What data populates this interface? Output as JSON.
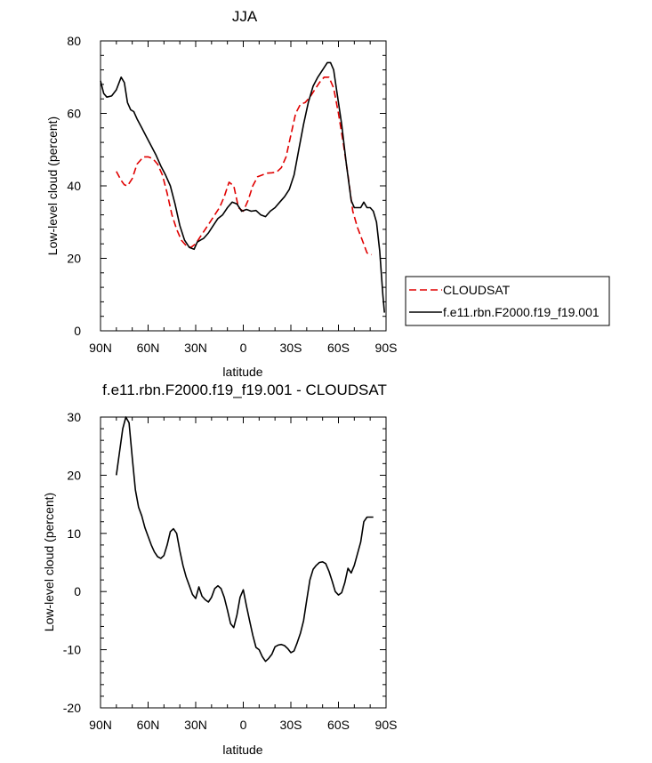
{
  "chart_data": [
    {
      "type": "line",
      "title": "JJA",
      "xlabel": "latitude",
      "ylabel": "Low-level cloud (percent)",
      "xlim": [
        -90,
        90
      ],
      "ylim": [
        0,
        80
      ],
      "x_ticks": [
        -90,
        -60,
        -30,
        0,
        30,
        60,
        90
      ],
      "x_tick_labels": [
        "90N",
        "60N",
        "30N",
        "0",
        "30S",
        "60S",
        "90S"
      ],
      "y_ticks": [
        0,
        20,
        40,
        60,
        80
      ],
      "y_tick_labels": [
        "0",
        "20",
        "40",
        "60",
        "80"
      ],
      "legend": "right",
      "series": [
        {
          "name": "CLOUDSAT",
          "color": "#e00000",
          "dash": "dashed",
          "x": [
            -80,
            -77,
            -75,
            -73,
            -70,
            -67,
            -63,
            -60,
            -57,
            -54,
            -51,
            -48,
            -45,
            -42,
            -39,
            -36,
            -33,
            -30,
            -27,
            -24,
            -21,
            -18,
            -15,
            -12,
            -9,
            -6,
            -3,
            0,
            3,
            6,
            9,
            12,
            15,
            18,
            21,
            24,
            27,
            30,
            33,
            36,
            39,
            42,
            45,
            48,
            51,
            54,
            57,
            60,
            63,
            66,
            69,
            72,
            75,
            78,
            81
          ],
          "y": [
            44,
            41.5,
            40.3,
            40,
            42,
            46,
            48,
            48,
            47.5,
            46,
            43,
            38,
            32,
            28,
            25,
            23.5,
            23,
            24,
            26,
            28,
            30,
            32,
            34,
            37,
            41,
            40,
            34,
            33,
            36,
            40,
            42.5,
            43,
            43.5,
            43.6,
            43.8,
            45,
            48,
            54,
            60,
            62.5,
            63,
            64.5,
            66.5,
            68.5,
            70,
            70,
            67,
            60,
            52,
            43,
            33,
            28.5,
            25,
            21.5,
            21
          ]
        },
        {
          "name": "f.e11.rbn.F2000.f19_f19.001",
          "color": "#000000",
          "dash": "solid",
          "x": [
            -90,
            -88,
            -86,
            -83,
            -80,
            -77,
            -75,
            -73,
            -71,
            -69,
            -67,
            -64,
            -61,
            -58,
            -55,
            -52,
            -49,
            -46,
            -43,
            -40,
            -37,
            -34,
            -31,
            -29,
            -27,
            -25,
            -22,
            -19,
            -16,
            -13,
            -10,
            -7,
            -4,
            -1,
            2,
            5,
            8,
            11,
            14,
            17,
            20,
            23,
            26,
            29,
            32,
            35,
            38,
            41,
            44,
            47,
            50,
            53,
            55,
            57,
            59,
            62,
            65,
            68,
            70,
            72,
            74,
            76,
            78,
            80,
            82,
            84,
            86,
            88,
            89
          ],
          "y": [
            69,
            65.5,
            64.5,
            64.8,
            66.5,
            70,
            68.5,
            63,
            61,
            60.5,
            58.5,
            56,
            53.5,
            51,
            48.5,
            45.5,
            43,
            40,
            35,
            29,
            25,
            23,
            22.5,
            24.5,
            25,
            25.5,
            27,
            29,
            31,
            32,
            34,
            35.5,
            35,
            33,
            33.5,
            33,
            33.2,
            32,
            31.5,
            33,
            34,
            35.5,
            37,
            39,
            43,
            50,
            57,
            63,
            67.5,
            70,
            72,
            74,
            74,
            72,
            66,
            57,
            46,
            36,
            34,
            34,
            34,
            35.5,
            34,
            34,
            33,
            30,
            22,
            10,
            5
          ]
        }
      ]
    },
    {
      "type": "line",
      "title": "f.e11.rbn.F2000.f19_f19.001 - CLOUDSAT",
      "xlabel": "latitude",
      "ylabel": "Low-level cloud (percent)",
      "xlim": [
        -90,
        90
      ],
      "ylim": [
        -20,
        30
      ],
      "x_ticks": [
        -90,
        -60,
        -30,
        0,
        30,
        60,
        90
      ],
      "x_tick_labels": [
        "90N",
        "60N",
        "30N",
        "0",
        "30S",
        "60S",
        "90S"
      ],
      "y_ticks": [
        -20,
        -10,
        0,
        10,
        20,
        30
      ],
      "y_tick_labels": [
        "-20",
        "-10",
        "0",
        "10",
        "20",
        "30"
      ],
      "series": [
        {
          "color": "#000000",
          "dash": "solid",
          "x": [
            -80,
            -78,
            -76,
            -74,
            -72,
            -70,
            -68,
            -66,
            -64,
            -62,
            -60,
            -58,
            -56,
            -54,
            -52,
            -50,
            -48,
            -46,
            -44,
            -42,
            -40,
            -38,
            -36,
            -34,
            -32,
            -30,
            -28,
            -26,
            -24,
            -22,
            -20,
            -18,
            -16,
            -14,
            -12,
            -10,
            -8,
            -6,
            -4,
            -2,
            0,
            2,
            4,
            6,
            8,
            10,
            12,
            14,
            16,
            18,
            20,
            22,
            24,
            26,
            28,
            30,
            32,
            34,
            36,
            38,
            40,
            42,
            44,
            46,
            48,
            50,
            52,
            54,
            56,
            58,
            60,
            62,
            64,
            66,
            68,
            70,
            72,
            74,
            76,
            78,
            80,
            82
          ],
          "y": [
            20,
            24,
            28,
            30,
            29,
            23,
            17.5,
            14.5,
            13,
            11,
            9.5,
            8,
            6.8,
            6,
            5.7,
            6.2,
            8,
            10.3,
            10.8,
            10,
            7,
            4.5,
            2.5,
            1,
            -0.5,
            -1.2,
            0.8,
            -0.8,
            -1.4,
            -1.8,
            -1,
            0.5,
            1,
            0.5,
            -1,
            -3.2,
            -5.5,
            -6.2,
            -4,
            -1,
            0.3,
            -2.5,
            -5,
            -7.5,
            -9.6,
            -10,
            -11.2,
            -12,
            -11.5,
            -10.8,
            -9.5,
            -9.2,
            -9.1,
            -9.3,
            -9.8,
            -10.5,
            -10.2,
            -8.8,
            -7.2,
            -5,
            -1.5,
            2,
            3.8,
            4.5,
            5,
            5.1,
            4.8,
            3.5,
            1.8,
            0,
            -0.6,
            -0.2,
            1.5,
            4,
            3.2,
            4.5,
            6.5,
            8.5,
            12,
            12.8,
            12.8,
            12.8
          ]
        }
      ]
    }
  ]
}
